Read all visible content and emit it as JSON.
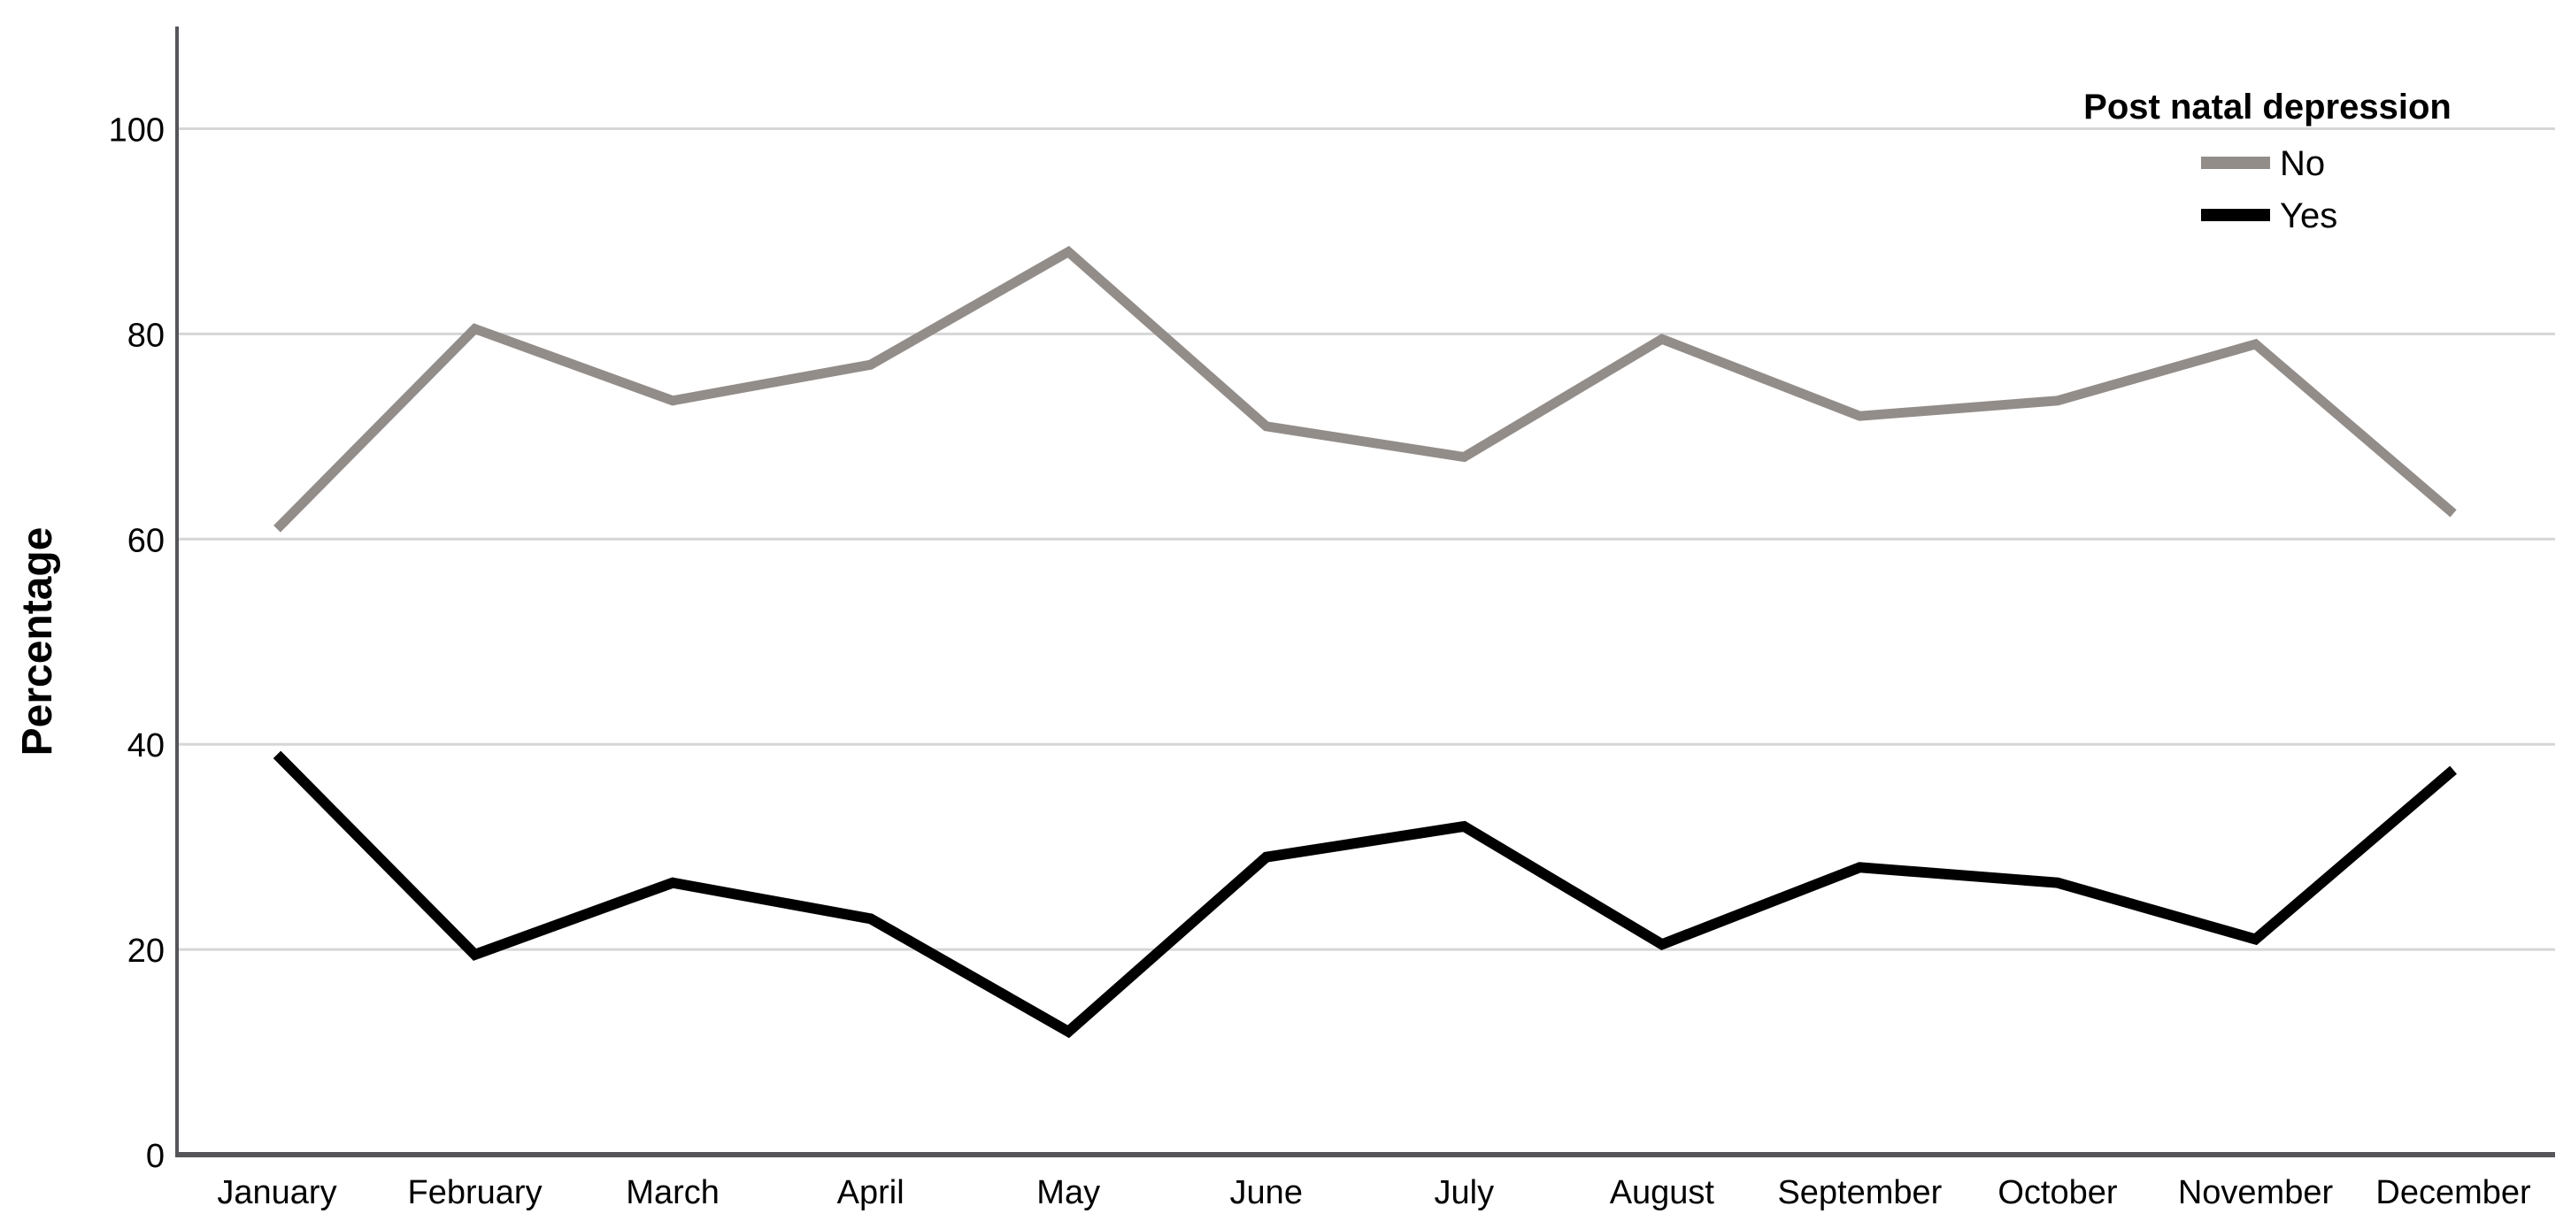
{
  "chart_data": {
    "type": "line",
    "title": "",
    "legend_title": "Post natal depression",
    "categories": [
      "January",
      "February",
      "March",
      "April",
      "May",
      "June",
      "July",
      "August",
      "September",
      "October",
      "November",
      "December"
    ],
    "series": [
      {
        "name": "No",
        "color": "#938d8a",
        "values": [
          61,
          80.5,
          73.5,
          77,
          88,
          71,
          68,
          79.5,
          72,
          73.5,
          79,
          62.5
        ]
      },
      {
        "name": "Yes",
        "color": "#000000",
        "values": [
          39,
          19.5,
          26.5,
          23,
          12,
          29,
          32,
          20.5,
          28,
          26.5,
          21,
          37.5
        ]
      }
    ],
    "xlabel": "",
    "ylabel": "Percentage",
    "ylim": [
      0,
      110
    ],
    "yticks": [
      0,
      20,
      40,
      60,
      80,
      100
    ],
    "grid": "horizontal-gridlines",
    "legend_position": "top-right-inside",
    "colors": {
      "gridline": "#d6d6d6",
      "axis": "#55555a",
      "text": "#000000",
      "background": "#ffffff"
    }
  }
}
